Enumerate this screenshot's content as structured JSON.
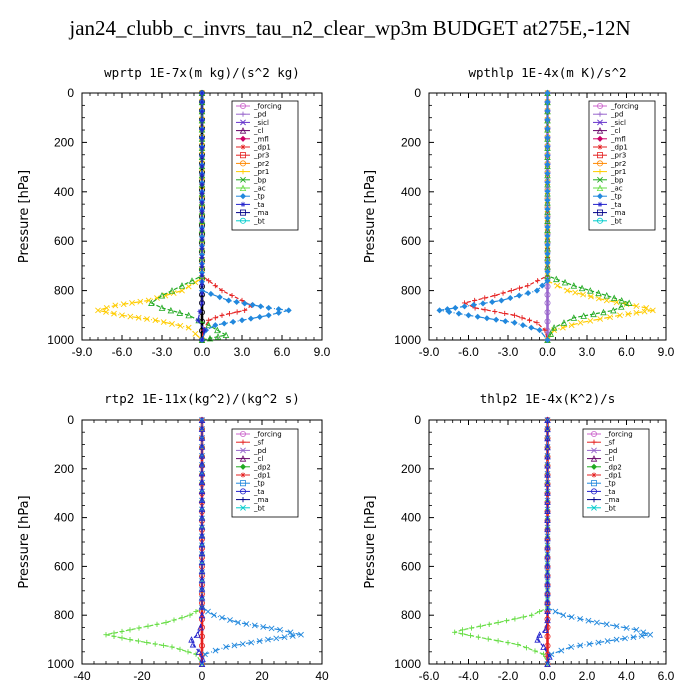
{
  "title": "jan24_clubb_c_invrs_tau_n2_clear_wp3m  BUDGET at275E,-12N",
  "chart_data": [
    {
      "type": "line",
      "title": "wprtp  1E-7x(m kg)/(s^2 kg)",
      "ylabel": "Pressure [hPa]",
      "xlim": [
        -9,
        9
      ],
      "ylim": [
        1000,
        0
      ],
      "xticks": [
        "-9.0",
        "-6.0",
        "-3.0",
        "0.0",
        "3.0",
        "6.0",
        "9.0"
      ],
      "xtick_values": [
        -9,
        -6,
        -3,
        0,
        3,
        6,
        9
      ],
      "yticks": [
        "0",
        "200",
        "400",
        "600",
        "800",
        "1000"
      ],
      "ytick_values": [
        0,
        200,
        400,
        600,
        800,
        1000
      ],
      "legend": [
        "_forcing",
        "_pd",
        "_sicl",
        "_cl",
        "_mfl",
        "_dp1",
        "_pr3",
        "_pr2",
        "_pr1",
        "_bp",
        "_ac",
        "_tp",
        "_ta",
        "_ma",
        "_bt"
      ],
      "series": [
        {
          "name": "_forcing",
          "color": "#000000",
          "p": [
            0,
            750,
            850,
            1000
          ],
          "x": [
            0,
            0,
            0,
            0
          ]
        },
        {
          "name": "_pr3",
          "color": "#e52222",
          "p": [
            0,
            740,
            760,
            800,
            840,
            860,
            880,
            900,
            920,
            960,
            1000
          ],
          "x": [
            0,
            0,
            0.5,
            1.5,
            3.0,
            3.7,
            3.2,
            1.5,
            0.5,
            0.1,
            0
          ]
        },
        {
          "name": "_pr1",
          "color": "#ffcc00",
          "p": [
            0,
            750,
            800,
            840,
            860,
            880,
            900,
            920,
            950,
            1000
          ],
          "x": [
            0,
            0,
            -1.5,
            -4.0,
            -6.5,
            -7.8,
            -6.0,
            -3.5,
            -1.0,
            0
          ]
        },
        {
          "name": "_bp",
          "color": "#22aa22",
          "p": [
            0,
            740,
            780,
            820,
            850,
            870,
            900,
            940,
            980,
            1000
          ],
          "x": [
            0,
            0,
            -1.5,
            -3.0,
            -3.8,
            -3.0,
            -1.0,
            0.5,
            1.8,
            0
          ]
        },
        {
          "name": "_tp",
          "color": "#2288dd",
          "p": [
            0,
            800,
            840,
            870,
            880,
            900,
            920,
            940,
            960,
            1000
          ],
          "x": [
            0,
            0,
            2.0,
            5.0,
            6.5,
            5.0,
            3.0,
            1.0,
            0.3,
            0
          ]
        },
        {
          "name": "_ta",
          "color": "#2222cc",
          "p": [
            0,
            850,
            920,
            960,
            1000
          ],
          "x": [
            0,
            0,
            -0.3,
            0.2,
            0
          ]
        }
      ]
    },
    {
      "type": "line",
      "title": "wpthlp  1E-4x(m K)/s^2",
      "ylabel": "Pressure [hPa]",
      "xlim": [
        -9,
        9
      ],
      "ylim": [
        1000,
        0
      ],
      "xticks": [
        "-9.0",
        "-6.0",
        "-3.0",
        "0.0",
        "3.0",
        "6.0",
        "9.0"
      ],
      "xtick_values": [
        -9,
        -6,
        -3,
        0,
        3,
        6,
        9
      ],
      "yticks": [
        "0",
        "200",
        "400",
        "600",
        "800",
        "1000"
      ],
      "ytick_values": [
        0,
        200,
        400,
        600,
        800,
        1000
      ],
      "legend": [
        "_forcing",
        "_pd",
        "_sicl",
        "_cl",
        "_mfl",
        "_dp1",
        "_pr3",
        "_pr2",
        "_pr1",
        "_bp",
        "_ac",
        "_tp",
        "_ta",
        "_ma",
        "_bt"
      ],
      "series": [
        {
          "name": "_forcing",
          "color": "#9966cc",
          "p": [
            0,
            750,
            850,
            1000
          ],
          "x": [
            0,
            0,
            0,
            0
          ]
        },
        {
          "name": "_pr3",
          "color": "#e52222",
          "p": [
            0,
            740,
            780,
            820,
            850,
            870,
            900,
            930,
            960,
            1000
          ],
          "x": [
            0,
            0,
            -1.5,
            -4.0,
            -6.3,
            -5.5,
            -2.5,
            -0.8,
            -0.2,
            0
          ]
        },
        {
          "name": "_pr1",
          "color": "#ffcc00",
          "p": [
            0,
            760,
            800,
            840,
            870,
            880,
            900,
            930,
            960,
            1000
          ],
          "x": [
            0,
            0,
            1.5,
            4.5,
            7.5,
            8.0,
            5.5,
            2.5,
            0.5,
            0
          ]
        },
        {
          "name": "_bp",
          "color": "#22aa22",
          "p": [
            0,
            740,
            780,
            820,
            850,
            880,
            910,
            950,
            1000
          ],
          "x": [
            0,
            0,
            2.0,
            4.5,
            6.2,
            5.0,
            2.0,
            0.5,
            0
          ]
        },
        {
          "name": "_tp",
          "color": "#2288dd",
          "p": [
            0,
            760,
            800,
            840,
            870,
            880,
            900,
            930,
            960,
            1000
          ],
          "x": [
            0,
            0,
            -0.8,
            -3.5,
            -7.0,
            -8.2,
            -6.0,
            -2.5,
            -0.6,
            0
          ]
        }
      ]
    },
    {
      "type": "line",
      "title": "rtp2  1E-11x(kg^2)/(kg^2 s)",
      "ylabel": "Pressure [hPa]",
      "xlim": [
        -40,
        40
      ],
      "ylim": [
        1000,
        0
      ],
      "xticks": [
        "-40",
        "-20",
        "0",
        "20",
        "40"
      ],
      "xtick_values": [
        -40,
        -20,
        0,
        20,
        40
      ],
      "yticks": [
        "0",
        "200",
        "400",
        "600",
        "800",
        "1000"
      ],
      "ytick_values": [
        0,
        200,
        400,
        600,
        800,
        1000
      ],
      "legend": [
        "_forcing",
        "_sf",
        "_pd",
        "_cl",
        "_dp2",
        "_dp1",
        "_tp",
        "_ta",
        "_ma",
        "_bt"
      ],
      "series": [
        {
          "name": "_forcing",
          "color": "#e52222",
          "p": [
            0,
            750,
            850,
            1000
          ],
          "x": [
            0,
            0,
            0,
            0
          ]
        },
        {
          "name": "_dp1",
          "color": "#66dd44",
          "p": [
            0,
            770,
            800,
            830,
            860,
            880,
            900,
            930,
            960,
            1000
          ],
          "x": [
            0,
            0,
            -4,
            -12,
            -24,
            -32,
            -24,
            -10,
            -2,
            0
          ]
        },
        {
          "name": "_tp",
          "color": "#2288dd",
          "p": [
            0,
            770,
            800,
            830,
            860,
            880,
            900,
            930,
            960,
            1000
          ],
          "x": [
            0,
            0,
            4,
            12,
            26,
            33,
            22,
            8,
            1,
            0
          ]
        },
        {
          "name": "_ta",
          "color": "#2222cc",
          "p": [
            0,
            800,
            850,
            880,
            900,
            920,
            950,
            980,
            1000
          ],
          "x": [
            0,
            0,
            -0.5,
            -1.5,
            -3.5,
            -3.0,
            -1.0,
            0.2,
            0
          ]
        }
      ]
    },
    {
      "type": "line",
      "title": "thlp2  1E-4x(K^2)/s",
      "ylabel": "Pressure [hPa]",
      "xlim": [
        -6,
        6
      ],
      "ylim": [
        1000,
        0
      ],
      "xticks": [
        "-6.0",
        "-4.0",
        "-2.0",
        "0.0",
        "2.0",
        "4.0",
        "6.0"
      ],
      "xtick_values": [
        -6,
        -4,
        -2,
        0,
        2,
        4,
        6
      ],
      "yticks": [
        "0",
        "200",
        "400",
        "600",
        "800",
        "1000"
      ],
      "ytick_values": [
        0,
        200,
        400,
        600,
        800,
        1000
      ],
      "legend": [
        "_forcing",
        "_sf",
        "_pd",
        "_cl",
        "_dp2",
        "_dp1",
        "_tp",
        "_ta",
        "_ma",
        "_bt"
      ],
      "series": [
        {
          "name": "_forcing",
          "color": "#e52222",
          "p": [
            0,
            750,
            850,
            1000
          ],
          "x": [
            0,
            0,
            0,
            0
          ]
        },
        {
          "name": "_dp1",
          "color": "#66dd44",
          "p": [
            0,
            770,
            800,
            830,
            860,
            870,
            890,
            920,
            960,
            1000
          ],
          "x": [
            0,
            0,
            -0.8,
            -2.5,
            -4.3,
            -4.7,
            -3.5,
            -1.5,
            -0.2,
            0
          ]
        },
        {
          "name": "_tp",
          "color": "#2288dd",
          "p": [
            0,
            770,
            800,
            830,
            860,
            880,
            900,
            930,
            960,
            1000
          ],
          "x": [
            0,
            0,
            0.8,
            2.5,
            4.5,
            5.2,
            3.5,
            1.2,
            0.2,
            0
          ]
        },
        {
          "name": "_ta",
          "color": "#2222cc",
          "p": [
            0,
            820,
            860,
            880,
            900,
            930,
            970,
            1000
          ],
          "x": [
            0,
            0,
            -0.1,
            -0.4,
            -0.5,
            -0.2,
            0.1,
            0
          ]
        }
      ]
    }
  ],
  "legend_colors": {
    "_forcing": "#cc66cc",
    "_pd": "#9966cc",
    "_sicl": "#6633cc",
    "_cl": "#660066",
    "_mfl": "#cc0066",
    "_dp1": "#e52222",
    "_pr3": "#e52222",
    "_pr2": "#ff8800",
    "_pr1": "#ffcc00",
    "_bp": "#22aa22",
    "_ac": "#66dd44",
    "_tp": "#2288dd",
    "_ta": "#2222cc",
    "_ma": "#000088",
    "_bt": "#00cccc",
    "_sf": "#e52222",
    "_dp2": "#22aa22"
  }
}
